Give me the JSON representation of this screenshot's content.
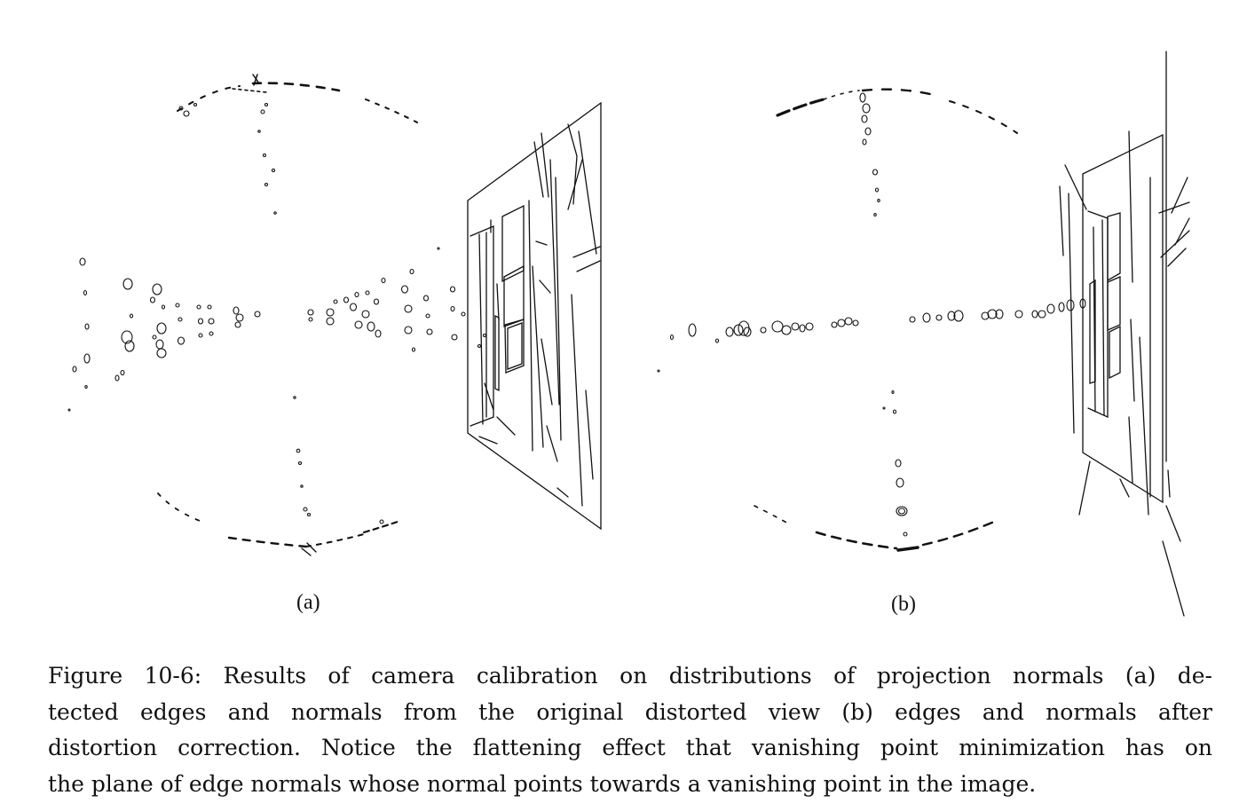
{
  "figure": {
    "panel_a_label": "(a)",
    "panel_b_label": "(b)",
    "stroke_color": "#111111",
    "background_color": "#ffffff"
  },
  "caption": {
    "lines": [
      "Figure 10-6: Results of camera calibration on distributions of projection normals (a) de-",
      "tected edges and normals from the original distorted view (b) edges and normals after",
      "distortion correction. Notice the flattening effect that vanishing point minimization has on",
      "the plane of edge normals whose normal points towards a vanishing point in the image."
    ]
  }
}
